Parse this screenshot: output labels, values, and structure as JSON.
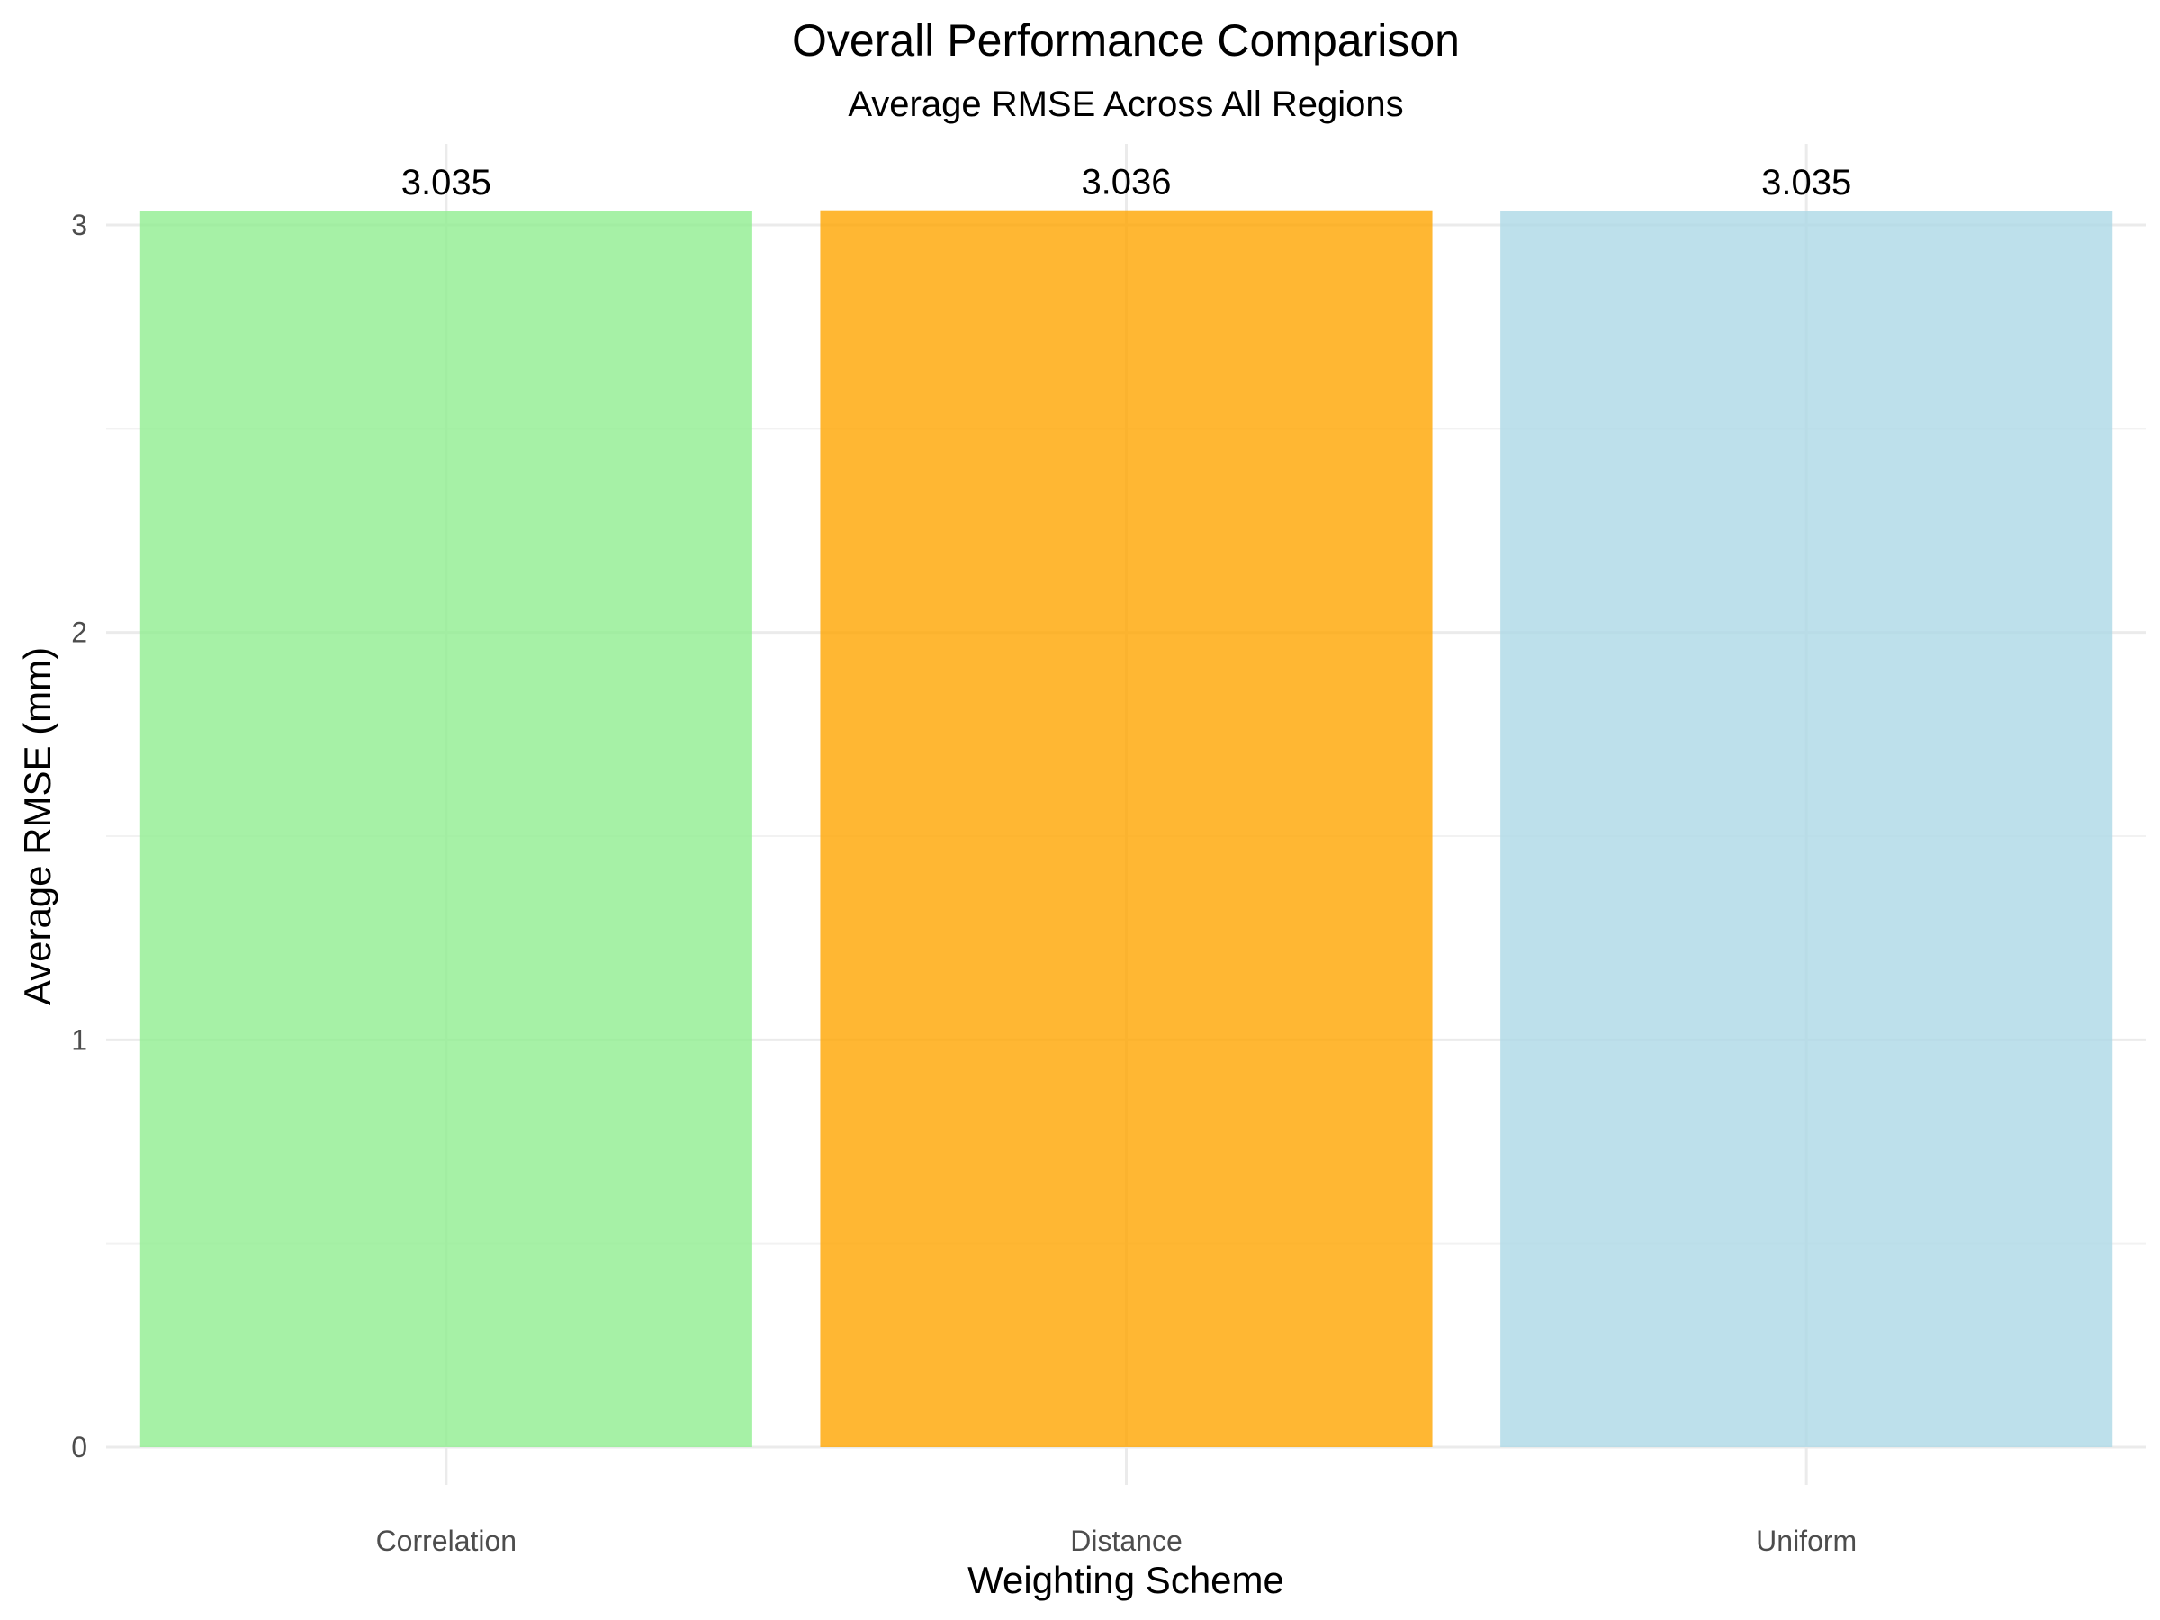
{
  "chart_data": {
    "type": "bar",
    "title": "Overall Performance Comparison",
    "subtitle": "Average RMSE Across All Regions",
    "xlabel": "Weighting Scheme",
    "ylabel": "Average RMSE (mm)",
    "categories": [
      "Correlation",
      "Distance",
      "Uniform"
    ],
    "values": [
      3.035,
      3.036,
      3.035
    ],
    "data_labels": [
      "3.035",
      "3.036",
      "3.035"
    ],
    "colors": [
      "#90EE90",
      "#FFA500",
      "#ADD8E6"
    ],
    "bar_opacity": 0.8,
    "ylim": [
      0,
      3.3
    ],
    "yticks": [
      0,
      1,
      2,
      3
    ],
    "grid": true,
    "legend": "none"
  }
}
